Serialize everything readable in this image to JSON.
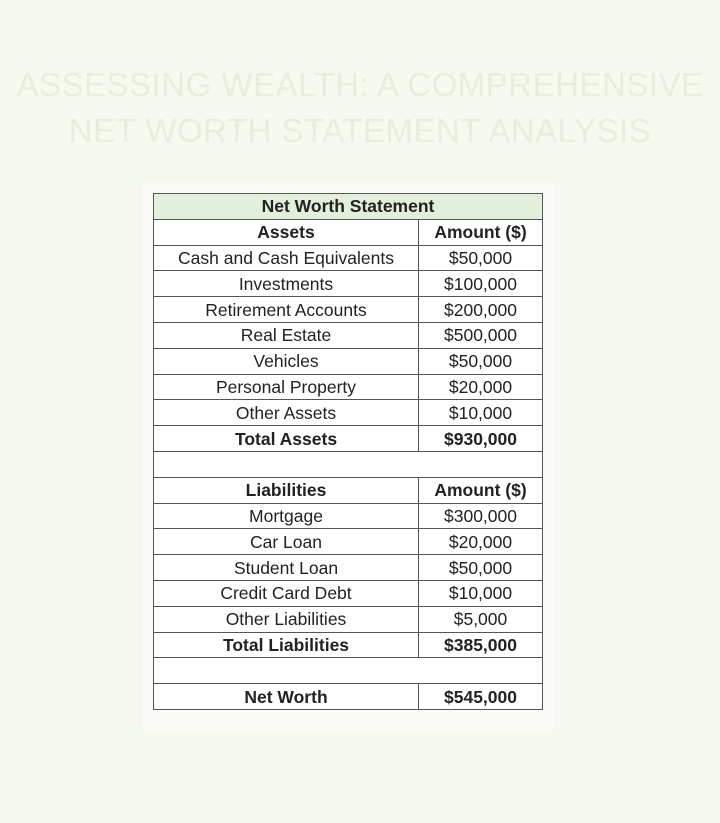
{
  "title": [
    "ASSESSING WEALTH: A COMPREHENSIVE",
    "NET WORTH STATEMENT ANALYSIS"
  ],
  "table": {
    "heading": "Net Worth Statement",
    "assets_header": [
      "Assets",
      "Amount ($)"
    ],
    "assets": [
      [
        "Cash and Cash Equivalents",
        "$50,000"
      ],
      [
        "Investments",
        "$100,000"
      ],
      [
        "Retirement Accounts",
        "$200,000"
      ],
      [
        "Real Estate",
        "$500,000"
      ],
      [
        "Vehicles",
        "$50,000"
      ],
      [
        "Personal Property",
        "$20,000"
      ],
      [
        "Other Assets",
        "$10,000"
      ]
    ],
    "total_assets": [
      "Total Assets",
      "$930,000"
    ],
    "liabilities_header": [
      "Liabilities",
      "Amount ($)"
    ],
    "liabilities": [
      [
        "Mortgage",
        "$300,000"
      ],
      [
        "Car Loan",
        "$20,000"
      ],
      [
        "Student Loan",
        "$50,000"
      ],
      [
        "Credit Card Debt",
        "$10,000"
      ],
      [
        "Other Liabilities",
        "$5,000"
      ]
    ],
    "total_liabilities": [
      "Total Liabilities",
      "$385,000"
    ],
    "net_worth": [
      "Net Worth",
      "$545,000"
    ]
  },
  "colors": {
    "header_fill": "#e2efda",
    "background": "#f6f9f0"
  }
}
